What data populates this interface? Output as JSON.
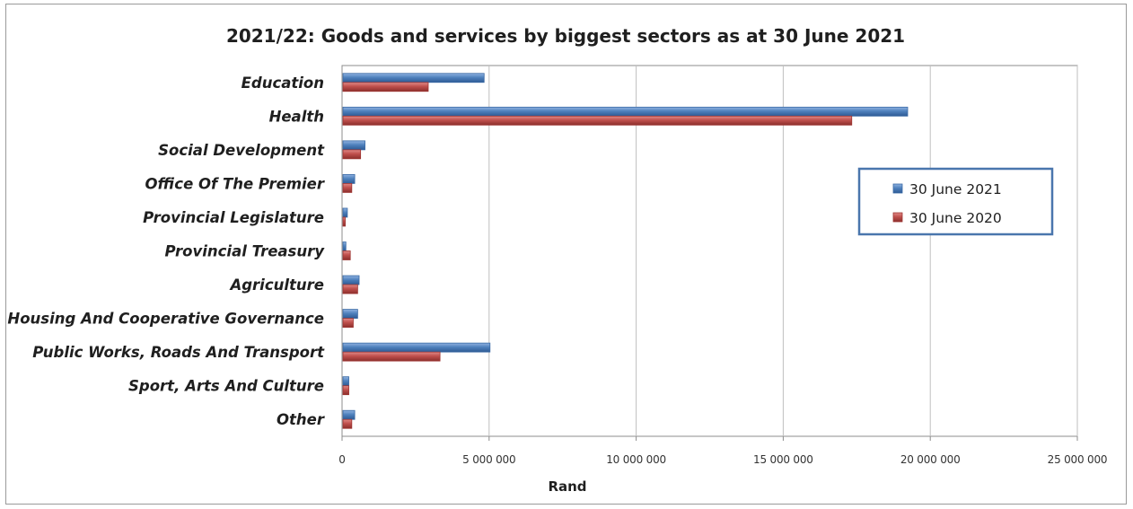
{
  "chart_data": {
    "type": "bar",
    "orientation": "horizontal",
    "title": "2021/22: Goods and services by biggest sectors as at 30 June 2021",
    "xlabel": "Rand",
    "ylabel": "",
    "xlim": [
      0,
      25000000
    ],
    "x_ticks": [
      0,
      5000000,
      10000000,
      15000000,
      20000000,
      25000000
    ],
    "x_tick_labels": [
      "0",
      "5 000 000",
      "10 000 000",
      "15 000 000",
      "20 000 000",
      "25 000 000"
    ],
    "grid": true,
    "legend_position": "right",
    "categories": [
      "Education",
      "Health",
      "Social Development",
      "Office Of The Premier",
      "Provincial Legislature",
      "Provincial Treasury",
      "Agriculture",
      "Housing And Cooperative Governance",
      "Public Works, Roads And Transport",
      "Sport, Arts And Culture",
      "Other"
    ],
    "series": [
      {
        "name": "30 June 2021",
        "color": "#4f81bd",
        "values": [
          4800000,
          19200000,
          750000,
          400000,
          150000,
          100000,
          550000,
          500000,
          5000000,
          200000,
          400000
        ]
      },
      {
        "name": "30 June 2020",
        "color": "#c0504d",
        "values": [
          2900000,
          17300000,
          600000,
          300000,
          80000,
          250000,
          500000,
          350000,
          3300000,
          200000,
          300000
        ]
      }
    ]
  }
}
